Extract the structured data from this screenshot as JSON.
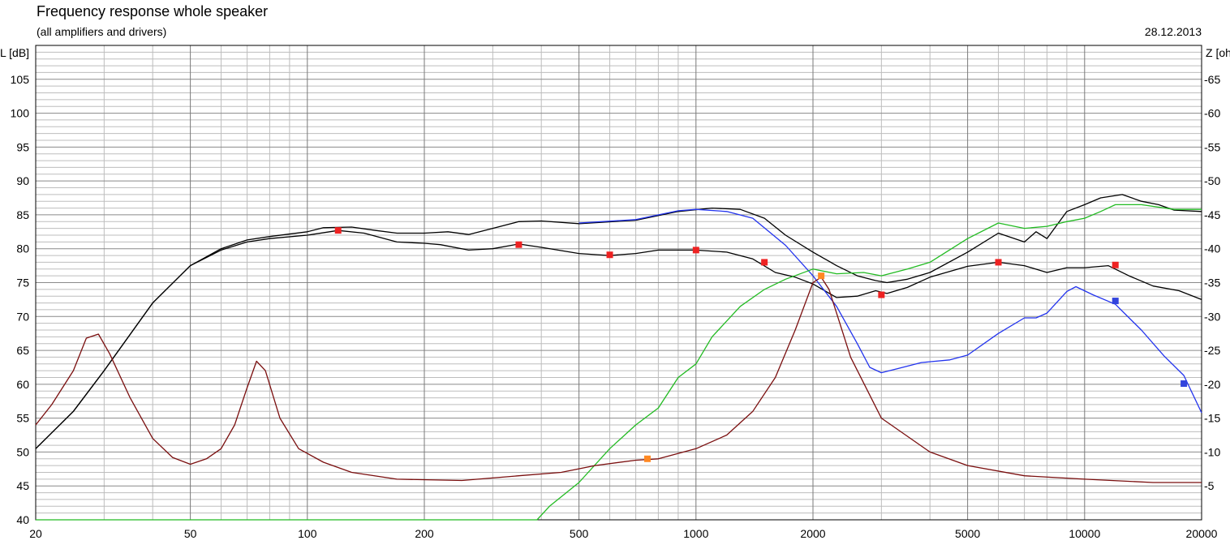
{
  "title": "Frequency response whole speaker",
  "subtitle": "(all amplifiers and drivers)",
  "date": "28.12.2013",
  "chart_data": {
    "type": "line",
    "xscale": "log",
    "xlim": [
      20,
      20000
    ],
    "ylim": [
      40,
      110
    ],
    "y2lim": [
      0,
      70
    ],
    "ylabel": "L [dB]",
    "y2label": "Z [oh",
    "grid": true,
    "x_ticks": [
      20,
      50,
      100,
      200,
      500,
      1000,
      2000,
      5000,
      10000,
      20000
    ],
    "y_ticks": [
      40,
      45,
      50,
      55,
      60,
      65,
      70,
      75,
      80,
      85,
      90,
      95,
      100,
      105
    ],
    "y2_ticks": [
      5,
      10,
      15,
      20,
      25,
      30,
      35,
      40,
      45,
      50,
      55,
      60,
      65
    ],
    "series": [
      {
        "color": "#000000",
        "axis": "left",
        "points": [
          [
            20,
            50.5
          ],
          [
            25,
            56
          ],
          [
            30,
            62
          ],
          [
            40,
            72
          ],
          [
            50,
            77.5
          ],
          [
            60,
            80
          ],
          [
            70,
            81.3
          ],
          [
            80,
            81.8
          ],
          [
            100,
            82.5
          ],
          [
            110,
            83.1
          ],
          [
            130,
            83.2
          ],
          [
            150,
            82.7
          ],
          [
            170,
            82.3
          ],
          [
            200,
            82.3
          ],
          [
            230,
            82.5
          ],
          [
            260,
            82.1
          ],
          [
            300,
            83
          ],
          [
            350,
            84
          ],
          [
            400,
            84.1
          ],
          [
            500,
            83.7
          ],
          [
            700,
            84.2
          ],
          [
            900,
            85.5
          ],
          [
            1100,
            86
          ],
          [
            1300,
            85.8
          ],
          [
            1500,
            84.5
          ],
          [
            1700,
            82
          ],
          [
            2000,
            79.5
          ],
          [
            2300,
            77.5
          ],
          [
            2600,
            76
          ],
          [
            2900,
            75.3
          ],
          [
            3100,
            75
          ],
          [
            3500,
            75.5
          ],
          [
            4000,
            76.5
          ],
          [
            5000,
            79.5
          ],
          [
            6000,
            82.3
          ],
          [
            7000,
            81
          ],
          [
            7500,
            82.5
          ],
          [
            8000,
            81.5
          ],
          [
            9000,
            85.5
          ],
          [
            10000,
            86.5
          ],
          [
            11000,
            87.5
          ],
          [
            12500,
            88
          ],
          [
            14000,
            87
          ],
          [
            15500,
            86.5
          ],
          [
            17000,
            85.7
          ],
          [
            20000,
            85.5
          ]
        ]
      },
      {
        "color": "#000000",
        "axis": "left",
        "points": [
          [
            20,
            50.5
          ],
          [
            25,
            56
          ],
          [
            30,
            62
          ],
          [
            40,
            72
          ],
          [
            50,
            77.5
          ],
          [
            60,
            79.8
          ],
          [
            70,
            81
          ],
          [
            80,
            81.5
          ],
          [
            100,
            82
          ],
          [
            120,
            82.7
          ],
          [
            140,
            82.3
          ],
          [
            170,
            81
          ],
          [
            200,
            80.8
          ],
          [
            220,
            80.6
          ],
          [
            260,
            79.8
          ],
          [
            300,
            80
          ],
          [
            350,
            80.7
          ],
          [
            400,
            80.2
          ],
          [
            500,
            79.3
          ],
          [
            600,
            79
          ],
          [
            700,
            79.3
          ],
          [
            800,
            79.8
          ],
          [
            1000,
            79.8
          ],
          [
            1200,
            79.5
          ],
          [
            1400,
            78.5
          ],
          [
            1600,
            76.5
          ],
          [
            1800,
            75.8
          ],
          [
            2000,
            74.8
          ],
          [
            2300,
            72.8
          ],
          [
            2600,
            73
          ],
          [
            2900,
            73.8
          ],
          [
            3100,
            73.4
          ],
          [
            3500,
            74.3
          ],
          [
            4000,
            75.8
          ],
          [
            5000,
            77.4
          ],
          [
            6000,
            78
          ],
          [
            7000,
            77.5
          ],
          [
            8000,
            76.5
          ],
          [
            9000,
            77.2
          ],
          [
            10000,
            77.2
          ],
          [
            11500,
            77.5
          ],
          [
            13000,
            76
          ],
          [
            15000,
            74.5
          ],
          [
            17500,
            73.8
          ],
          [
            20000,
            72.5
          ]
        ]
      },
      {
        "color": "#2233ee",
        "axis": "left",
        "points": [
          [
            500,
            83.8
          ],
          [
            700,
            84.3
          ],
          [
            900,
            85.6
          ],
          [
            1000,
            85.8
          ],
          [
            1200,
            85.5
          ],
          [
            1400,
            84.5
          ],
          [
            1700,
            80.5
          ],
          [
            2000,
            76
          ],
          [
            2300,
            71.5
          ],
          [
            2600,
            66
          ],
          [
            2800,
            62.5
          ],
          [
            3000,
            61.7
          ],
          [
            3300,
            62.3
          ],
          [
            3800,
            63.2
          ],
          [
            4500,
            63.6
          ],
          [
            5000,
            64.3
          ],
          [
            6000,
            67.5
          ],
          [
            7000,
            69.8
          ],
          [
            7500,
            69.8
          ],
          [
            8000,
            70.5
          ],
          [
            9000,
            73.7
          ],
          [
            9500,
            74.4
          ],
          [
            10500,
            73.2
          ],
          [
            12000,
            71.8
          ],
          [
            14000,
            68
          ],
          [
            16000,
            64.2
          ],
          [
            18000,
            61.3
          ],
          [
            20000,
            55.8
          ]
        ]
      },
      {
        "color": "#22bb22",
        "axis": "left",
        "points": [
          [
            20,
            40
          ],
          [
            390,
            40
          ],
          [
            420,
            42
          ],
          [
            500,
            45.5
          ],
          [
            600,
            50.5
          ],
          [
            700,
            54
          ],
          [
            800,
            56.5
          ],
          [
            900,
            61
          ],
          [
            1000,
            63
          ],
          [
            1100,
            67
          ],
          [
            1300,
            71.5
          ],
          [
            1500,
            74
          ],
          [
            1700,
            75.5
          ],
          [
            2000,
            77
          ],
          [
            2300,
            76.3
          ],
          [
            2700,
            76.5
          ],
          [
            3000,
            76
          ],
          [
            3500,
            77
          ],
          [
            4000,
            78
          ],
          [
            5000,
            81.5
          ],
          [
            6000,
            83.8
          ],
          [
            7000,
            83
          ],
          [
            8000,
            83.3
          ],
          [
            9000,
            84
          ],
          [
            10000,
            84.5
          ],
          [
            11000,
            85.5
          ],
          [
            12000,
            86.5
          ],
          [
            14000,
            86.5
          ],
          [
            17000,
            85.8
          ],
          [
            20000,
            85.8
          ]
        ]
      },
      {
        "color": "#7a0e0e",
        "axis": "right",
        "points": [
          [
            20,
            14
          ],
          [
            22,
            17
          ],
          [
            25,
            22
          ],
          [
            27,
            26.8
          ],
          [
            29,
            27.4
          ],
          [
            31,
            24.5
          ],
          [
            35,
            18
          ],
          [
            40,
            12
          ],
          [
            45,
            9.2
          ],
          [
            50,
            8.2
          ],
          [
            55,
            9
          ],
          [
            60,
            10.5
          ],
          [
            65,
            14
          ],
          [
            70,
            19.5
          ],
          [
            74,
            23.4
          ],
          [
            78,
            22
          ],
          [
            85,
            15
          ],
          [
            95,
            10.5
          ],
          [
            110,
            8.5
          ],
          [
            130,
            7
          ],
          [
            170,
            6
          ],
          [
            250,
            5.8
          ],
          [
            350,
            6.5
          ],
          [
            450,
            7
          ],
          [
            550,
            8
          ],
          [
            700,
            8.8
          ],
          [
            800,
            9
          ],
          [
            1000,
            10.5
          ],
          [
            1200,
            12.5
          ],
          [
            1400,
            16
          ],
          [
            1600,
            21
          ],
          [
            1800,
            28
          ],
          [
            2000,
            35
          ],
          [
            2100,
            35.8
          ],
          [
            2200,
            34
          ],
          [
            2500,
            24
          ],
          [
            3000,
            15
          ],
          [
            4000,
            10
          ],
          [
            5000,
            8
          ],
          [
            7000,
            6.5
          ],
          [
            10000,
            6
          ],
          [
            15000,
            5.5
          ],
          [
            20000,
            5.5
          ]
        ]
      }
    ],
    "markers": [
      {
        "color": "#ee2222",
        "axis": "left",
        "x": 120,
        "y": 82.7
      },
      {
        "color": "#ee2222",
        "axis": "left",
        "x": 350,
        "y": 80.6
      },
      {
        "color": "#ee2222",
        "axis": "left",
        "x": 600,
        "y": 79.1
      },
      {
        "color": "#ee2222",
        "axis": "left",
        "x": 1000,
        "y": 79.8
      },
      {
        "color": "#ee2222",
        "axis": "left",
        "x": 1500,
        "y": 78
      },
      {
        "color": "#ee2222",
        "axis": "left",
        "x": 3000,
        "y": 73.2
      },
      {
        "color": "#ee2222",
        "axis": "left",
        "x": 6000,
        "y": 78
      },
      {
        "color": "#ee2222",
        "axis": "left",
        "x": 12000,
        "y": 77.6
      },
      {
        "color": "#3344dd",
        "axis": "left",
        "x": 12000,
        "y": 72.3
      },
      {
        "color": "#3344dd",
        "axis": "left",
        "x": 18000,
        "y": 60.1
      },
      {
        "color": "#ff8822",
        "axis": "right",
        "x": 750,
        "y": 9
      },
      {
        "color": "#ff8822",
        "axis": "right",
        "x": 2100,
        "y": 36
      }
    ]
  }
}
